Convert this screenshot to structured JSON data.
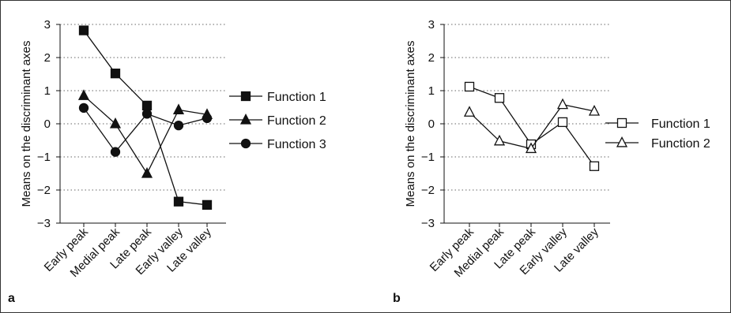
{
  "chart_data": [
    {
      "type": "line",
      "panel_label": "a",
      "ylabel": "Means on the discriminant axes",
      "ylim": [
        -3,
        3
      ],
      "yticks": [
        "3",
        "2",
        "1",
        "0",
        "−1",
        "−2",
        "−3"
      ],
      "categories": [
        "Early peak",
        "Medial peak",
        "Late peak",
        "Early valley",
        "Late valley"
      ],
      "grid": "horizontal dotted",
      "legend_position": "right",
      "series": [
        {
          "name": "Function 1",
          "marker": "filled-square",
          "values": [
            2.82,
            1.52,
            0.55,
            -2.35,
            -2.45
          ]
        },
        {
          "name": "Function 2",
          "marker": "filled-triangle",
          "values": [
            0.85,
            0.0,
            -1.5,
            0.42,
            0.28
          ]
        },
        {
          "name": "Function 3",
          "marker": "filled-circle",
          "values": [
            0.48,
            -0.85,
            0.3,
            -0.05,
            0.17
          ]
        }
      ]
    },
    {
      "type": "line",
      "panel_label": "b",
      "ylabel": "Means on the discriminant axes",
      "ylim": [
        -3,
        3
      ],
      "yticks": [
        "3",
        "2",
        "1",
        "0",
        "−1",
        "−2",
        "−3"
      ],
      "categories": [
        "Early peak",
        "Medial peak",
        "Late peak",
        "Early valley",
        "Late valley"
      ],
      "grid": "horizontal dotted",
      "legend_position": "right",
      "series": [
        {
          "name": "Function 1",
          "marker": "open-square",
          "values": [
            1.12,
            0.78,
            -0.62,
            0.05,
            -1.28
          ]
        },
        {
          "name": "Function 2",
          "marker": "open-triangle",
          "values": [
            0.35,
            -0.52,
            -0.75,
            0.58,
            0.38
          ]
        }
      ]
    }
  ]
}
